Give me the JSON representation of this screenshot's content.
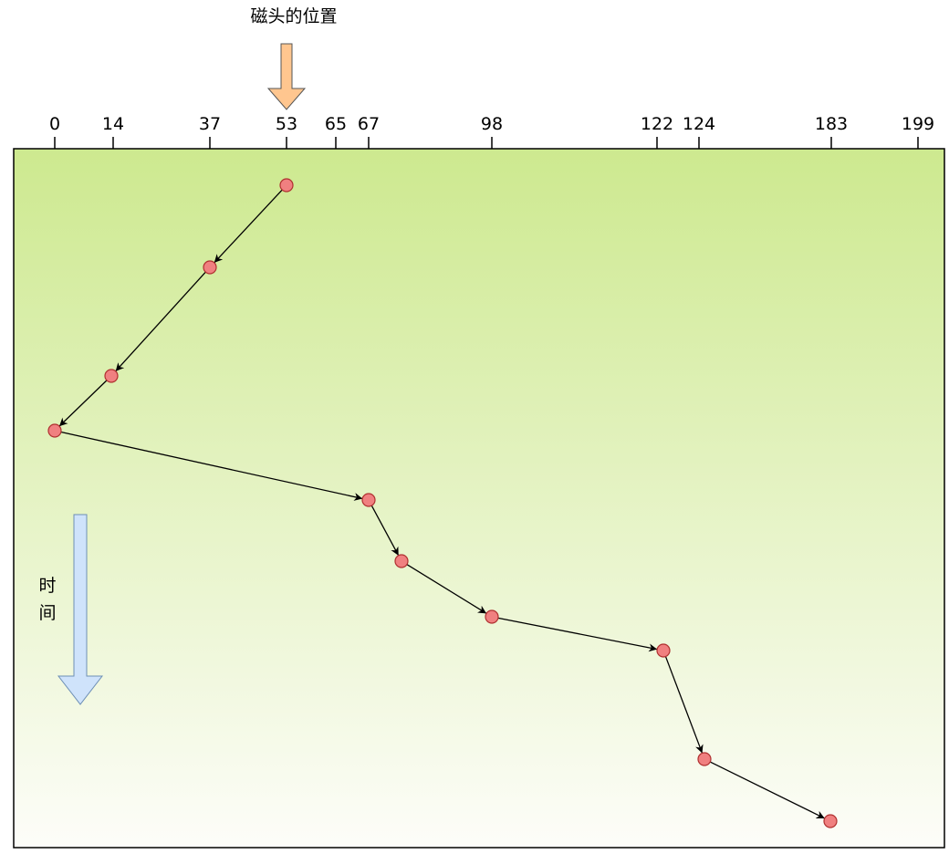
{
  "title": "磁头的位置",
  "axis": {
    "ticks": [
      "0",
      "14",
      "37",
      "53",
      "65",
      "67",
      "98",
      "122",
      "124",
      "183",
      "199"
    ]
  },
  "time_label": [
    "时",
    "间"
  ]
}
